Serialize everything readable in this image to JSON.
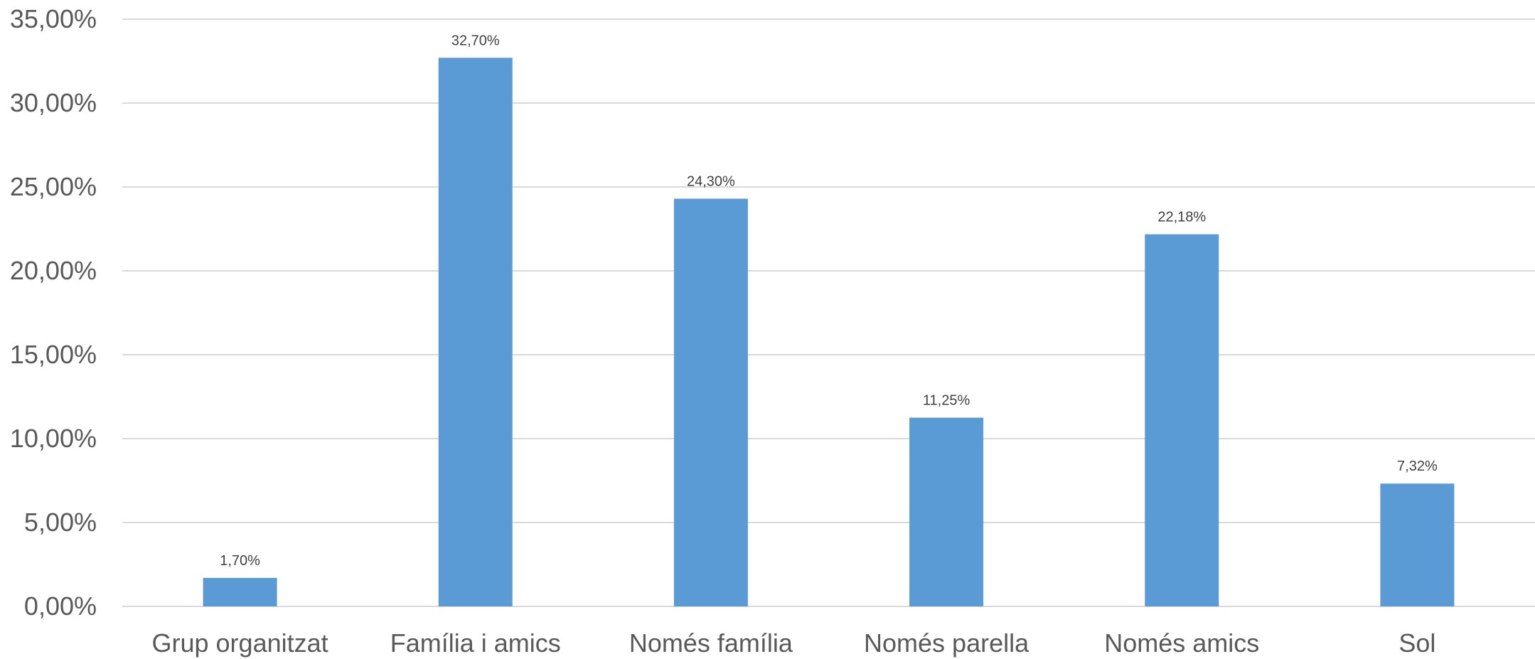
{
  "chart_data": {
    "type": "bar",
    "categories": [
      "Grup organitzat",
      "Família i amics",
      "Només família",
      "Només parella",
      "Només amics",
      "Sol"
    ],
    "values": [
      1.7,
      32.7,
      24.3,
      11.25,
      22.18,
      7.32
    ],
    "data_labels": [
      "1,70%",
      "32,70%",
      "24,30%",
      "11,25%",
      "22,18%",
      "7,32%"
    ],
    "y_ticks": [
      0,
      5,
      10,
      15,
      20,
      25,
      30,
      35
    ],
    "y_tick_labels": [
      "0,00%",
      "5,00%",
      "10,00%",
      "15,00%",
      "20,00%",
      "25,00%",
      "30,00%",
      "35,00%"
    ],
    "ylim": [
      0,
      35
    ],
    "title": "",
    "xlabel": "",
    "ylabel": "",
    "grid": true,
    "legend": "none",
    "bar_color": "#5b9bd5"
  }
}
